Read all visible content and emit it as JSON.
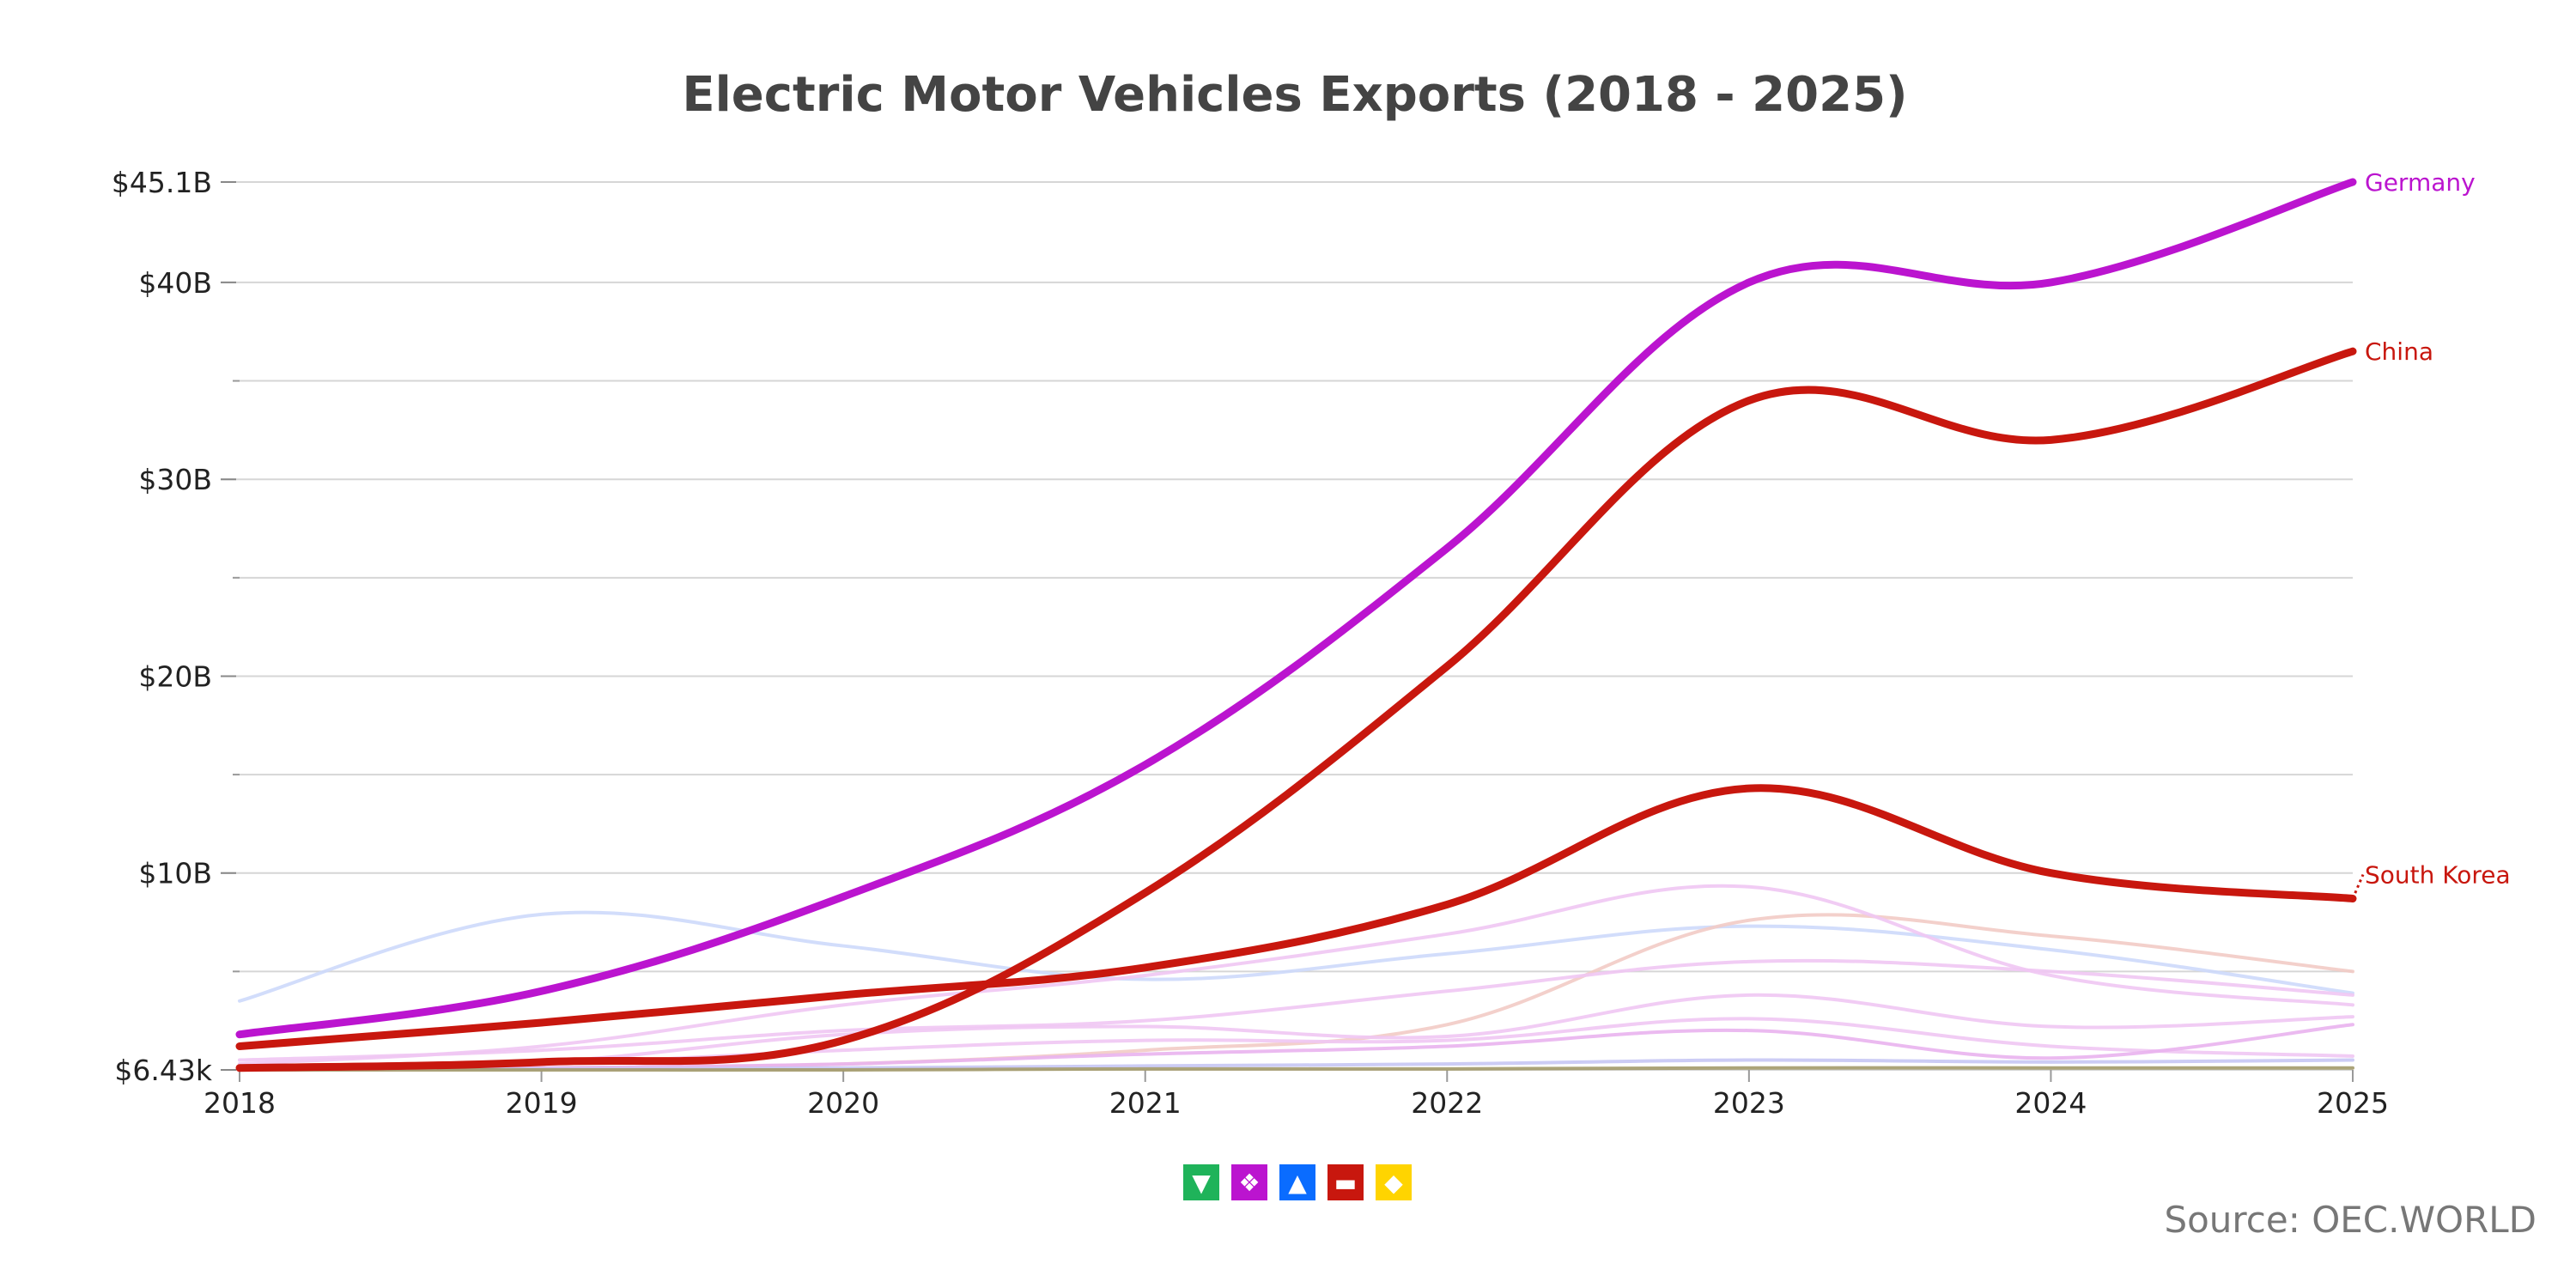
{
  "chart_data": {
    "type": "line",
    "title": "Electric Motor Vehicles Exports (2018 - 2025)",
    "x": [
      2018,
      2019,
      2020,
      2021,
      2022,
      2023,
      2024,
      2025
    ],
    "x_tick_labels": [
      "2018",
      "2019",
      "2020",
      "2021",
      "2022",
      "2023",
      "2024",
      "2025"
    ],
    "y_unit": "billion USD",
    "ylim": [
      0,
      45.1
    ],
    "y_tick_values": [
      0,
      10,
      20,
      30,
      40,
      45.1
    ],
    "y_tick_labels": [
      "$6.43k",
      "$10B",
      "$20B",
      "$30B",
      "$40B",
      "$45.1B"
    ],
    "y_minor_gridlines": [
      5,
      15,
      25,
      35
    ],
    "grid": true,
    "series": [
      {
        "color": "#cdd9fb",
        "values": [
          3.5,
          7.9,
          6.3,
          4.6,
          5.9,
          7.3,
          6.1,
          3.9
        ]
      },
      {
        "color": "#f2cbc5",
        "values": [
          0.05,
          0.1,
          0.3,
          1.0,
          2.3,
          7.6,
          6.8,
          5.0
        ]
      },
      {
        "color": "#efc6f3",
        "values": [
          0.3,
          1.2,
          3.3,
          4.8,
          6.9,
          9.3,
          4.8,
          3.3
        ]
      },
      {
        "color": "#efc6f3",
        "values": [
          0.5,
          1.0,
          2.0,
          2.5,
          4.0,
          5.5,
          5.0,
          3.8
        ]
      },
      {
        "color": "#efc6f3",
        "values": [
          0.2,
          0.4,
          1.8,
          2.2,
          1.7,
          3.8,
          2.2,
          2.7
        ]
      },
      {
        "color": "#efc6f3",
        "values": [
          0.1,
          0.3,
          1.0,
          1.5,
          1.5,
          2.6,
          1.2,
          0.7
        ]
      },
      {
        "color": "#e9b3ee",
        "values": [
          0.0,
          0.1,
          0.3,
          0.8,
          1.2,
          2.0,
          0.6,
          2.3
        ]
      },
      {
        "color": "#c6c6f4",
        "values": [
          0.05,
          0.05,
          0.1,
          0.2,
          0.3,
          0.5,
          0.4,
          0.5
        ]
      },
      {
        "color": "#a39a6a",
        "values": [
          0.0,
          0.0,
          0.0,
          0.05,
          0.05,
          0.1,
          0.1,
          0.1
        ]
      },
      {
        "name": "South Korea",
        "color": "#c8170e",
        "highlight": true,
        "values": [
          1.2,
          2.4,
          3.8,
          5.2,
          8.4,
          14.3,
          10.0,
          8.7
        ]
      },
      {
        "name": "China",
        "color": "#c8170e",
        "highlight": true,
        "values": [
          0.1,
          0.4,
          1.5,
          9.0,
          20.5,
          34.0,
          32.0,
          36.5
        ]
      },
      {
        "name": "Germany",
        "color": "#bb14cf",
        "highlight": true,
        "values": [
          1.8,
          4.0,
          8.8,
          15.5,
          26.5,
          40.0,
          40.0,
          45.1
        ]
      }
    ],
    "legend": {
      "placement": "bottom",
      "items": [
        {
          "icon": "south-america-icon",
          "color": "#1fb35a"
        },
        {
          "icon": "europe-icon",
          "color": "#bb14cf"
        },
        {
          "icon": "north-america-icon",
          "color": "#0a6cff"
        },
        {
          "icon": "asia-icon",
          "color": "#c8170e"
        },
        {
          "icon": "africa-icon",
          "color": "#ffd400"
        }
      ]
    }
  },
  "source": "Source: OEC.WORLD"
}
